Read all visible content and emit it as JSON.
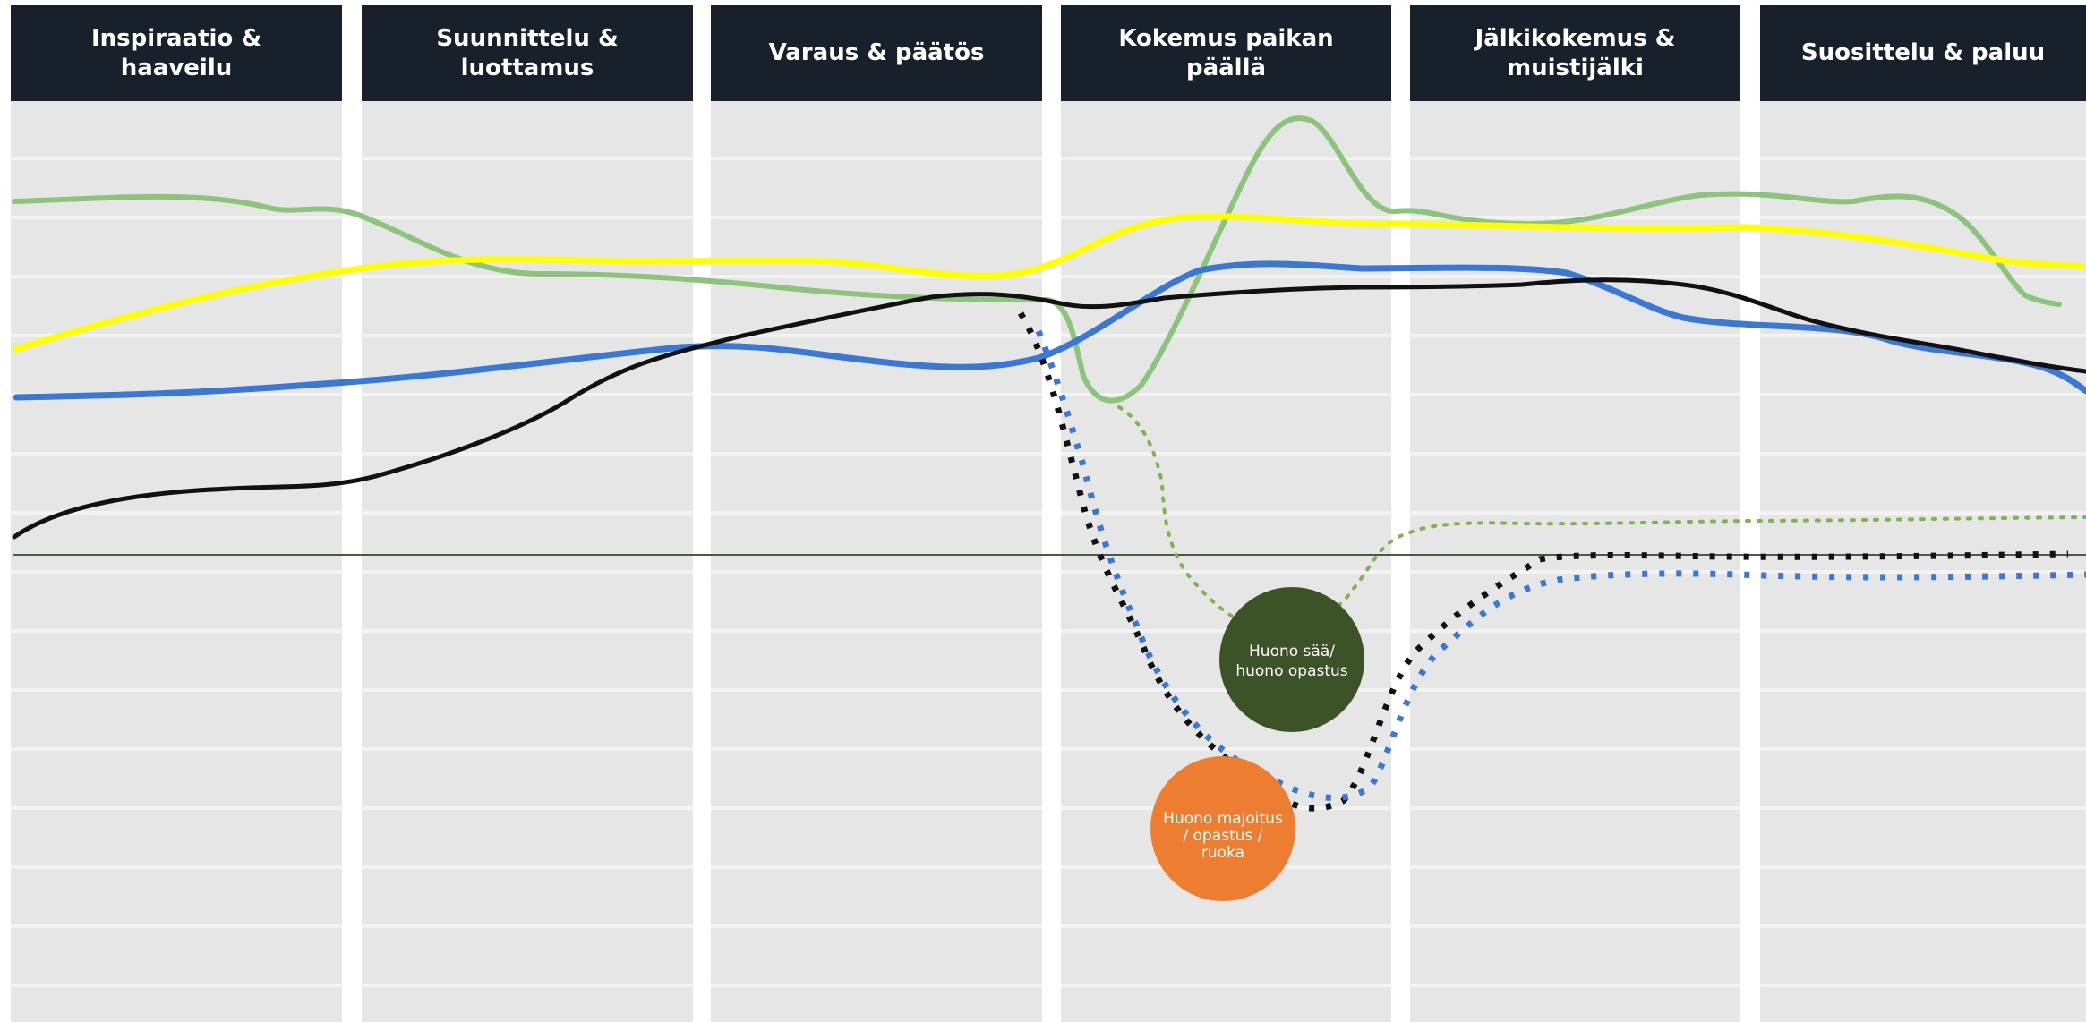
{
  "stages": [
    {
      "label": "Inspiraatio &\nhaaveilu"
    },
    {
      "label": "Suunnittelu &\nluottamus"
    },
    {
      "label": "Varaus & päätös"
    },
    {
      "label": "Kokemus paikan\npäällä"
    },
    {
      "label": "Jälkikokemus &\nmuistijälki"
    },
    {
      "label": "Suosittelu & paluu"
    }
  ],
  "colors": {
    "header_bg": "#18212b",
    "column_bg": "#e8e8e8",
    "green": "#8cc47c",
    "yellow": "#ffff00",
    "blue": "#3a78d8",
    "black": "#111111",
    "green_dotted": "#7ab648",
    "baseline": "#4a5a44",
    "bubble_weather": "#3b5326",
    "bubble_accommodation": "#ed7d31"
  },
  "bubbles": [
    {
      "label_lines": [
        "Huono sää/",
        "huono opastus"
      ]
    },
    {
      "label_lines": [
        "Huono majoitus",
        "/ opastus /",
        "ruoka"
      ]
    }
  ]
}
